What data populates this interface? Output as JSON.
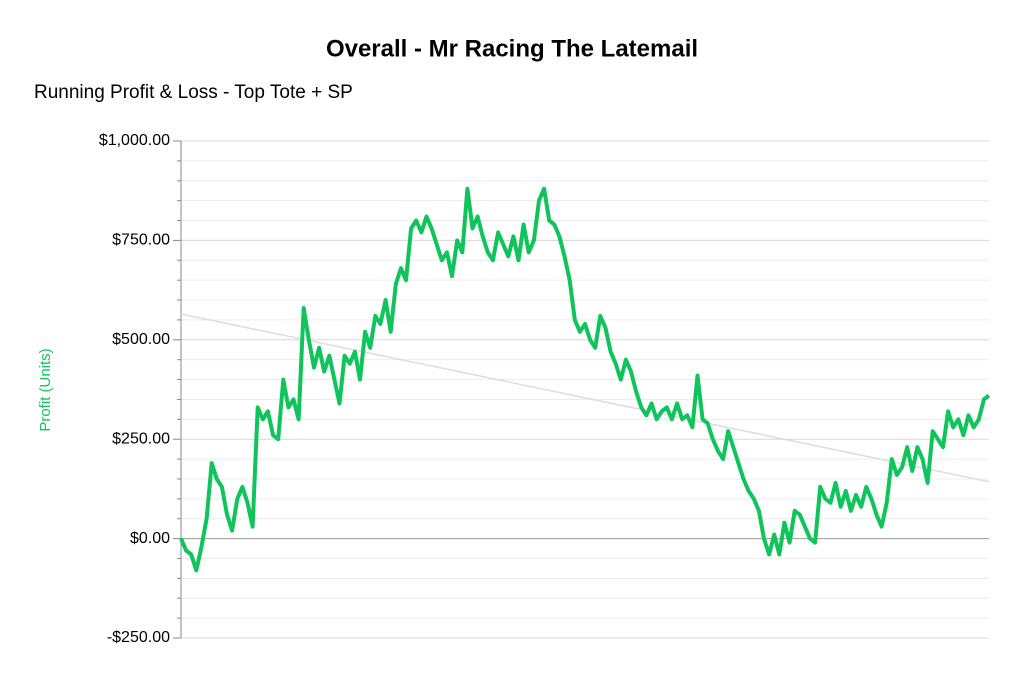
{
  "chart_data": {
    "type": "line",
    "title": "Overall - Mr Racing The Latemail",
    "subtitle": "Running Profit & Loss - Top Tote + SP",
    "y_label": "Profit (Units)",
    "ylim": [
      -250,
      1000
    ],
    "yticks": [
      {
        "value": -250,
        "label": "-$250.00"
      },
      {
        "value": 0,
        "label": "$0.00"
      },
      {
        "value": 250,
        "label": "$250.00"
      },
      {
        "value": 500,
        "label": "$500.00"
      },
      {
        "value": 750,
        "label": "$750.00"
      },
      {
        "value": 1000,
        "label": "$1,000.00"
      }
    ],
    "minor_yticks": [
      -200,
      -150,
      -100,
      -50,
      50,
      100,
      150,
      200,
      300,
      350,
      400,
      450,
      550,
      600,
      650,
      700,
      800,
      850,
      900,
      950
    ],
    "grid": true,
    "series": [
      {
        "name": "Profit (Units)",
        "color": "#10c45c",
        "values": [
          0,
          -30,
          -40,
          -80,
          -20,
          50,
          190,
          150,
          130,
          60,
          20,
          100,
          130,
          90,
          30,
          330,
          300,
          320,
          260,
          250,
          400,
          330,
          350,
          300,
          580,
          500,
          430,
          480,
          420,
          460,
          400,
          340,
          460,
          440,
          470,
          400,
          520,
          480,
          560,
          540,
          600,
          520,
          640,
          680,
          650,
          780,
          800,
          770,
          810,
          780,
          740,
          700,
          720,
          660,
          750,
          720,
          880,
          780,
          810,
          760,
          720,
          700,
          770,
          740,
          710,
          760,
          700,
          790,
          720,
          750,
          850,
          880,
          800,
          790,
          760,
          710,
          650,
          550,
          520,
          540,
          500,
          480,
          560,
          530,
          470,
          440,
          400,
          450,
          420,
          370,
          330,
          310,
          340,
          300,
          320,
          330,
          300,
          340,
          300,
          310,
          280,
          410,
          300,
          290,
          250,
          220,
          200,
          270,
          230,
          190,
          150,
          120,
          100,
          70,
          0,
          -40,
          10,
          -40,
          40,
          -10,
          70,
          60,
          30,
          0,
          -10,
          130,
          100,
          90,
          140,
          80,
          120,
          70,
          110,
          80,
          130,
          100,
          60,
          30,
          90,
          200,
          160,
          180,
          230,
          170,
          230,
          200,
          140,
          270,
          250,
          230,
          320,
          280,
          300,
          260,
          310,
          280,
          300,
          350,
          360
        ]
      }
    ],
    "trendline": [
      565,
      143
    ]
  }
}
